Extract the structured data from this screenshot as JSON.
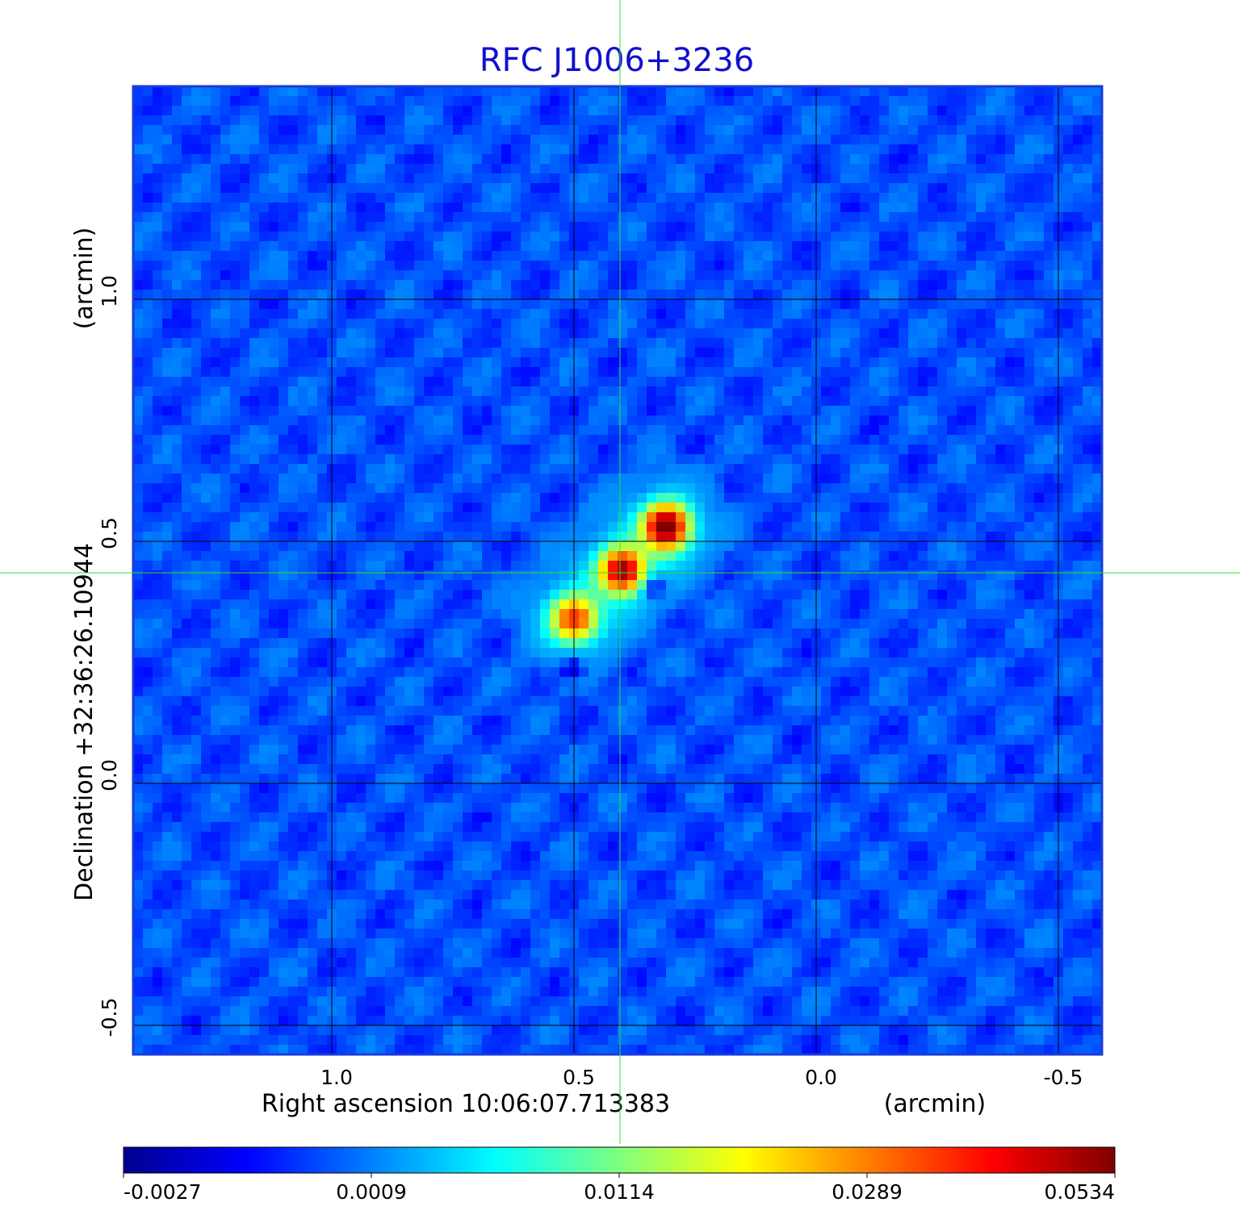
{
  "chart_data": {
    "type": "heatmap",
    "title": "RFC J1006+3236",
    "xlabel": "Right ascension  10:06:07.713383",
    "xunit": "(arcmin)",
    "ylabel": "Declination  +32:36:26.10944",
    "yunit": "(arcmin)",
    "x_ticks": [
      "1.0",
      "0.5",
      "0.0",
      "-0.5"
    ],
    "x_tick_values": [
      1.0,
      0.5,
      0.0,
      -0.5
    ],
    "y_ticks": [
      "1.0",
      "0.5",
      "0.0",
      "-0.5"
    ],
    "y_tick_values": [
      1.0,
      0.5,
      0.0,
      -0.5
    ],
    "xlim": [
      1.41,
      -0.59
    ],
    "ylim": [
      -0.56,
      1.44
    ],
    "grid": true,
    "crosshair": {
      "x": 0.405,
      "y": 0.435
    },
    "colorbar": {
      "ticks": [
        "-0.0027",
        "0.0009",
        "0.0114",
        "0.0289",
        "0.0534"
      ],
      "colormap": "jet"
    },
    "components": [
      {
        "x": 0.31,
        "y": 0.53,
        "peak": 0.0534
      },
      {
        "x": 0.4,
        "y": 0.44,
        "peak": 0.045
      },
      {
        "x": 0.5,
        "y": 0.34,
        "peak": 0.031
      }
    ],
    "negative_features": [
      {
        "x": 0.34,
        "y": 0.41,
        "value": -0.0027
      },
      {
        "x": 0.5,
        "y": 0.24,
        "value": -0.0015
      }
    ],
    "background_level": 0.0002
  },
  "colors": {
    "title": "#1010d0",
    "frame": "#1a3cd8",
    "grid": "#000000",
    "crosshair": "#33dd33",
    "text": "#000000"
  }
}
